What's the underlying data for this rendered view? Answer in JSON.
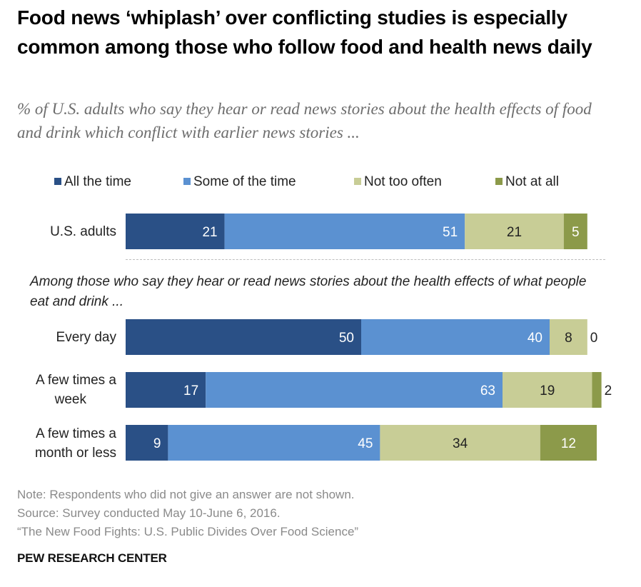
{
  "header": {
    "title": "Food news ‘whiplash’ over conflicting studies is especially common among those who follow food and health news daily",
    "subtitle": "% of U.S. adults who say they hear or read news stories about the health effects of food and drink which conflict with earlier news stories ..."
  },
  "chart_data": {
    "type": "bar",
    "orientation": "horizontal",
    "stacked": true,
    "title": "Food news ‘whiplash’ over conflicting studies is especially common among those who follow food and health news daily",
    "subtitle": "% of U.S. adults who say they hear or read news stories about the health effects of food and drink which conflict with earlier news stories ...",
    "xlim": [
      0,
      100
    ],
    "grid": false,
    "legend_position": "top",
    "group_note": "Among those who say they hear or read news stories about the health effects of what people eat and drink ...",
    "categories": [
      "U.S. adults",
      "Every day",
      "A few times a week",
      "A few times a month or less"
    ],
    "category_lines": [
      [
        "U.S. adults"
      ],
      [
        "Every day"
      ],
      [
        "A few times a",
        "week"
      ],
      [
        "A few times a",
        "month or less"
      ]
    ],
    "series": [
      {
        "name": "All the time",
        "color": "#2a5086",
        "label_color": "#ffffff",
        "values": [
          21,
          50,
          17,
          9
        ]
      },
      {
        "name": "Some of the time",
        "color": "#5b91d1",
        "label_color": "#ffffff",
        "values": [
          51,
          40,
          63,
          45
        ]
      },
      {
        "name": "Not too often",
        "color": "#c8cd96",
        "label_color": "#222222",
        "values": [
          21,
          8,
          19,
          34
        ]
      },
      {
        "name": "Not at all",
        "color": "#8c9a4a",
        "label_color": "#ffffff",
        "values": [
          5,
          0,
          2,
          12
        ]
      }
    ]
  },
  "footer": {
    "note": "Note: Respondents who did not give an answer are not shown.",
    "source": "Source: Survey conducted May 10-June 6, 2016.",
    "report": "“The New Food Fights: U.S. Public Divides Over Food Science”",
    "brand": "PEW RESEARCH CENTER"
  }
}
